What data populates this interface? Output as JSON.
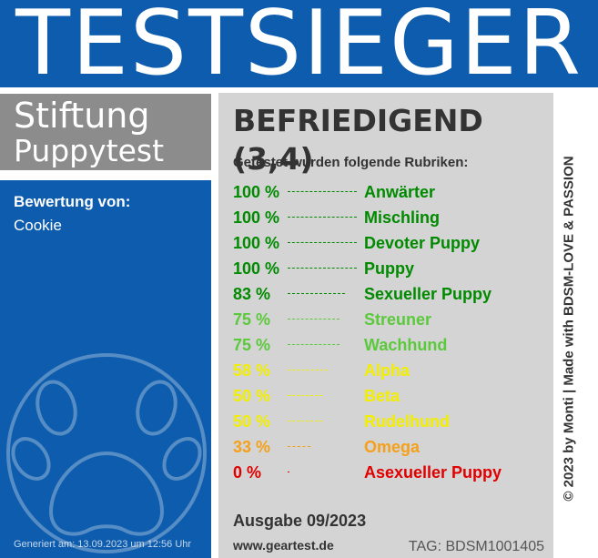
{
  "banner": {
    "title": "TESTSIEGER"
  },
  "brand": {
    "line1": "Stiftung",
    "line2": "Puppytest"
  },
  "rating": {
    "label": "Bewertung von:",
    "value": "Cookie"
  },
  "generated": "Generiert am: 13.09.2023 um 12:56 Uhr",
  "grade": "BEFRIEDIGEND (3,4)",
  "tested_label": "Getestet wurden folgende Rubriken:",
  "categories": [
    {
      "percent_text": "100 %",
      "percent": 100,
      "name": "Anwärter",
      "color": "#008a00"
    },
    {
      "percent_text": "100 %",
      "percent": 100,
      "name": "Mischling",
      "color": "#008a00"
    },
    {
      "percent_text": "100 %",
      "percent": 100,
      "name": "Devoter Puppy",
      "color": "#008a00"
    },
    {
      "percent_text": "100 %",
      "percent": 100,
      "name": "Puppy",
      "color": "#008a00"
    },
    {
      "percent_text": "83 %",
      "percent": 83,
      "name": "Sexueller Puppy",
      "color": "#008a00"
    },
    {
      "percent_text": "75 %",
      "percent": 75,
      "name": "Streuner",
      "color": "#5cc93c"
    },
    {
      "percent_text": "75 %",
      "percent": 75,
      "name": "Wachhund",
      "color": "#5cc93c"
    },
    {
      "percent_text": "58 %",
      "percent": 58,
      "name": "Alpha",
      "color": "#f2ee00"
    },
    {
      "percent_text": "50 %",
      "percent": 50,
      "name": "Beta",
      "color": "#f2ee00"
    },
    {
      "percent_text": "50 %",
      "percent": 50,
      "name": "Rudelhund",
      "color": "#f2ee00"
    },
    {
      "percent_text": "33 %",
      "percent": 33,
      "name": "Omega",
      "color": "#f5a01a"
    },
    {
      "percent_text": "0 %",
      "percent": 0,
      "name": "Asexueller Puppy",
      "color": "#e00000"
    }
  ],
  "edition": "Ausgabe 09/2023",
  "website": "www.geartest.de",
  "tag": "TAG: BDSM1001405",
  "side_text": "© 2023 by Monti | Made with BDSM-LOVE & PASSION",
  "colors": {
    "blue": "#0e5cad",
    "grey_brand": "#8c8c8c",
    "panel_grey": "#d4d4d4"
  },
  "icons": {
    "paw": "paw-icon"
  }
}
